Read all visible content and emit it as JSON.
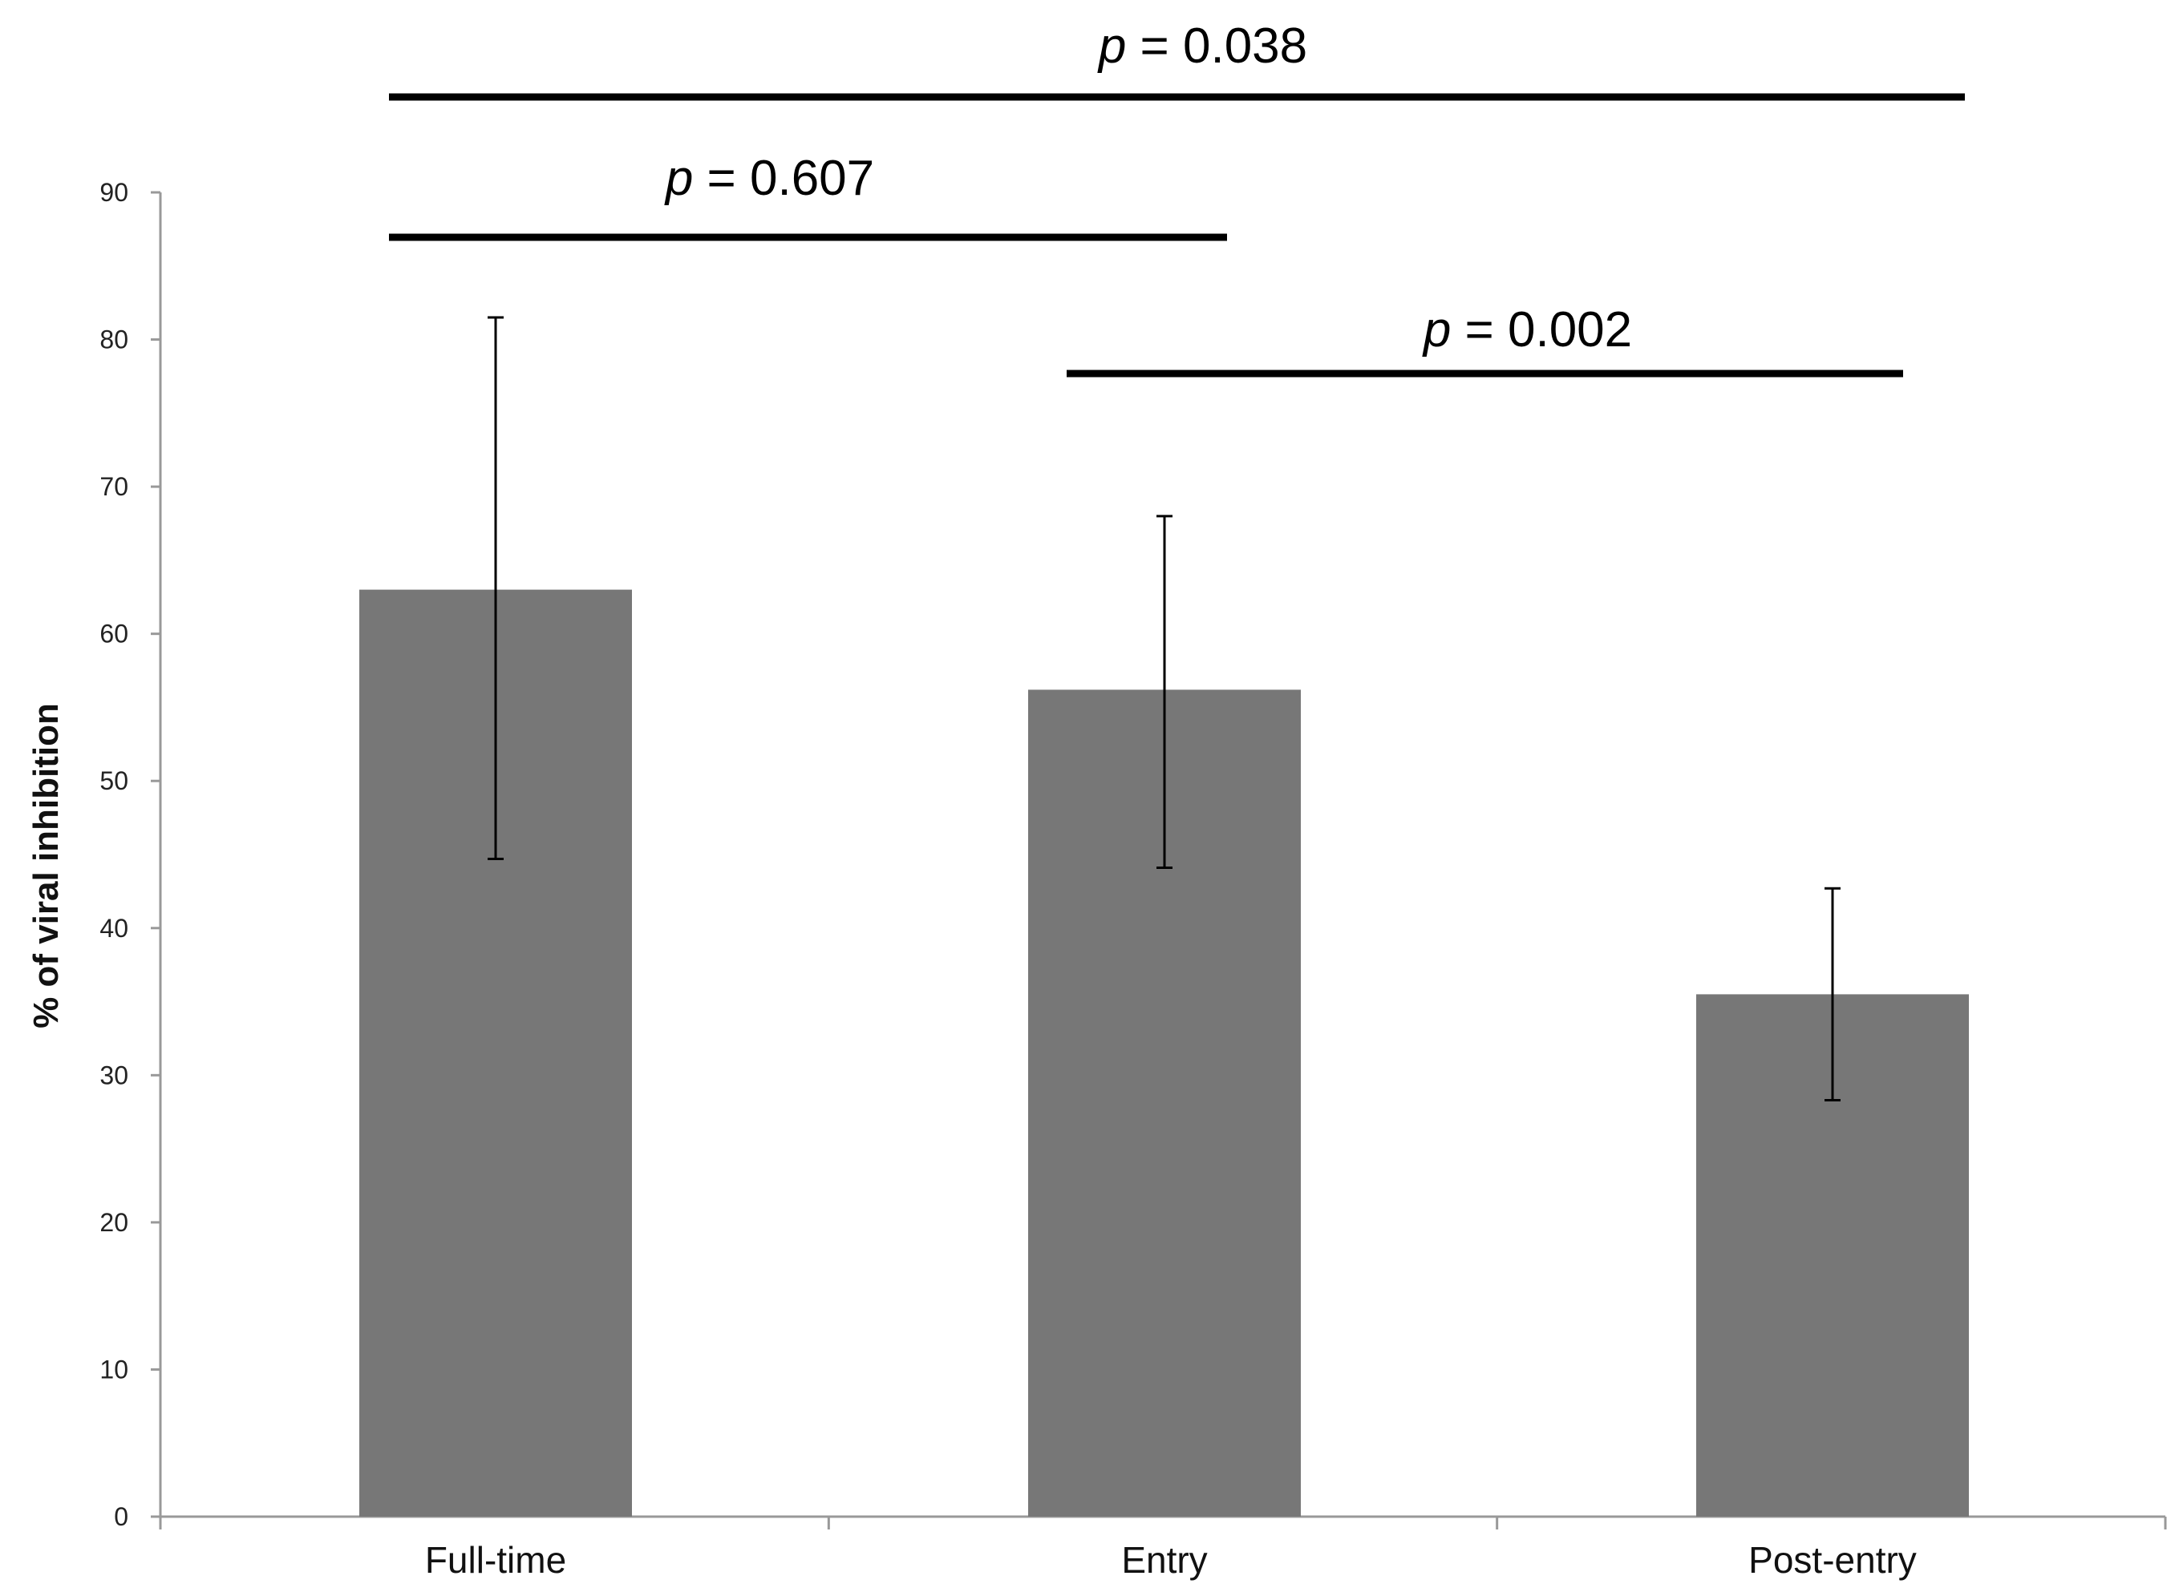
{
  "chart_data": {
    "type": "bar",
    "categories": [
      "Full-time",
      "Entry",
      "Post-entry"
    ],
    "values": [
      63,
      56.2,
      35.5
    ],
    "error_bars": {
      "upper": [
        81.5,
        68.0,
        42.7
      ],
      "lower": [
        44.7,
        44.1,
        28.3
      ]
    },
    "xlabel": "",
    "ylabel": "% of viral inhibition",
    "ylim": [
      0,
      90
    ],
    "yticks": [
      "0",
      "10",
      "20",
      "30",
      "40",
      "50",
      "60",
      "70",
      "80",
      "90"
    ],
    "grid": false,
    "legend": "none",
    "bar_color": "#777777",
    "annotations": [
      {
        "label_italic": "p",
        "label_value": " = 0.038",
        "from": "Full-time",
        "to": "Post-entry"
      },
      {
        "label_italic": "p",
        "label_value": " = 0.607",
        "from": "Full-time",
        "to": "Entry"
      },
      {
        "label_italic": "p",
        "label_value": " = 0.002",
        "from": "Entry",
        "to": "Post-entry"
      }
    ]
  }
}
